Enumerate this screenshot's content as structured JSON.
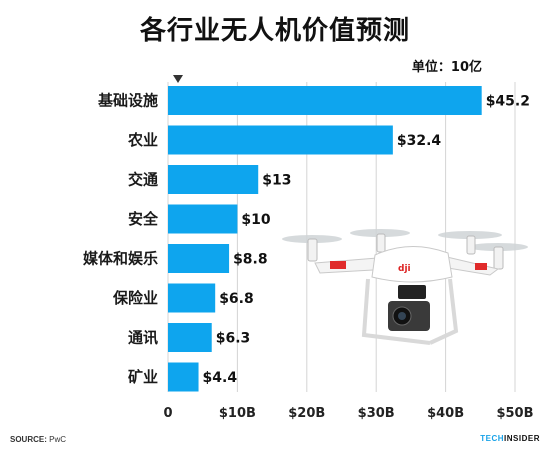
{
  "title": "各行业无人机价值预测",
  "unit_label": "单位：10亿",
  "source_label": "SOURCE:",
  "source_value": "PwC",
  "brand_left": "TECH",
  "brand_right": "INSIDER",
  "colors": {
    "bar": "#0ea5ee",
    "text": "#111111"
  },
  "chart_data": {
    "type": "bar",
    "orientation": "horizontal",
    "title": "各行业无人机价值预测",
    "categories": [
      "基础设施",
      "农业",
      "交通",
      "安全",
      "媒体和娱乐",
      "保险业",
      "通讯",
      "矿业"
    ],
    "values": [
      45.2,
      32.4,
      13,
      10,
      8.8,
      6.8,
      6.3,
      4.4
    ],
    "value_labels": [
      "$45.2",
      "$32.4",
      "$13",
      "$10",
      "$8.8",
      "$6.8",
      "$6.3",
      "$4.4"
    ],
    "xlim": [
      0,
      50
    ],
    "xticks": [
      0,
      10,
      20,
      30,
      40,
      50
    ],
    "xtick_labels": [
      "0",
      "$10B",
      "$20B",
      "$30B",
      "$40B",
      "$50B"
    ],
    "grid": true
  }
}
